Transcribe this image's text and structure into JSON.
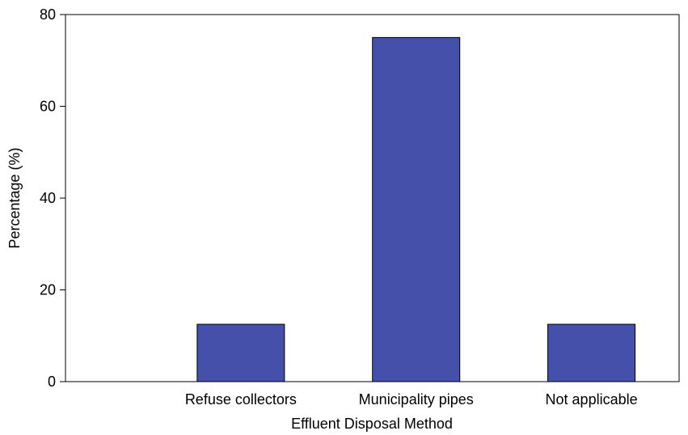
{
  "chart_data": {
    "type": "bar",
    "title": "",
    "xlabel": "Effluent Disposal Method",
    "ylabel": "Percentage (%)",
    "categories": [
      "Refuse collectors",
      "Municipality pipes",
      "Not applicable"
    ],
    "values": [
      12.5,
      75,
      12.5
    ],
    "ylim": [
      0,
      80
    ],
    "yticks": [
      0,
      20,
      40,
      60,
      80
    ],
    "grid": false,
    "legend": "none",
    "bar_color": "#4450a9",
    "bar_edge_color": "#000000"
  }
}
